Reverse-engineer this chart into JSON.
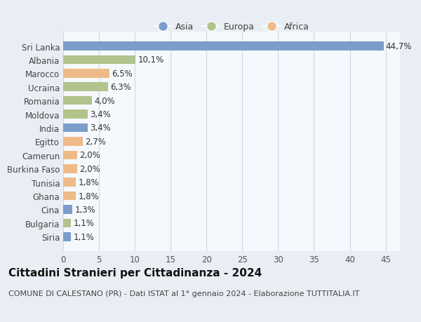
{
  "countries": [
    "Sri Lanka",
    "Albania",
    "Marocco",
    "Ucraina",
    "Romania",
    "Moldova",
    "India",
    "Egitto",
    "Camerun",
    "Burkina Faso",
    "Tunisia",
    "Ghana",
    "Cina",
    "Bulgaria",
    "Siria"
  ],
  "values": [
    44.7,
    10.1,
    6.5,
    6.3,
    4.0,
    3.4,
    3.4,
    2.7,
    2.0,
    2.0,
    1.8,
    1.8,
    1.3,
    1.1,
    1.1
  ],
  "labels": [
    "44,7%",
    "10,1%",
    "6,5%",
    "6,3%",
    "4,0%",
    "3,4%",
    "3,4%",
    "2,7%",
    "2,0%",
    "2,0%",
    "1,8%",
    "1,8%",
    "1,3%",
    "1,1%",
    "1,1%"
  ],
  "continents": [
    "Asia",
    "Europa",
    "Africa",
    "Europa",
    "Europa",
    "Europa",
    "Asia",
    "Africa",
    "Africa",
    "Africa",
    "Africa",
    "Africa",
    "Asia",
    "Europa",
    "Asia"
  ],
  "colors": {
    "Asia": "#7b9dc9",
    "Europa": "#b0c48c",
    "Africa": "#eebb88"
  },
  "title": "Cittadini Stranieri per Cittadinanza - 2024",
  "subtitle": "COMUNE DI CALESTANO (PR) - Dati ISTAT al 1° gennaio 2024 - Elaborazione TUTTITALIA.IT",
  "xlim": [
    0,
    47
  ],
  "background_color": "#e8eef4",
  "plot_background": "#f5f8fc",
  "grid_color": "#d0d8e0",
  "label_fontsize": 8.5,
  "title_fontsize": 11,
  "subtitle_fontsize": 8
}
